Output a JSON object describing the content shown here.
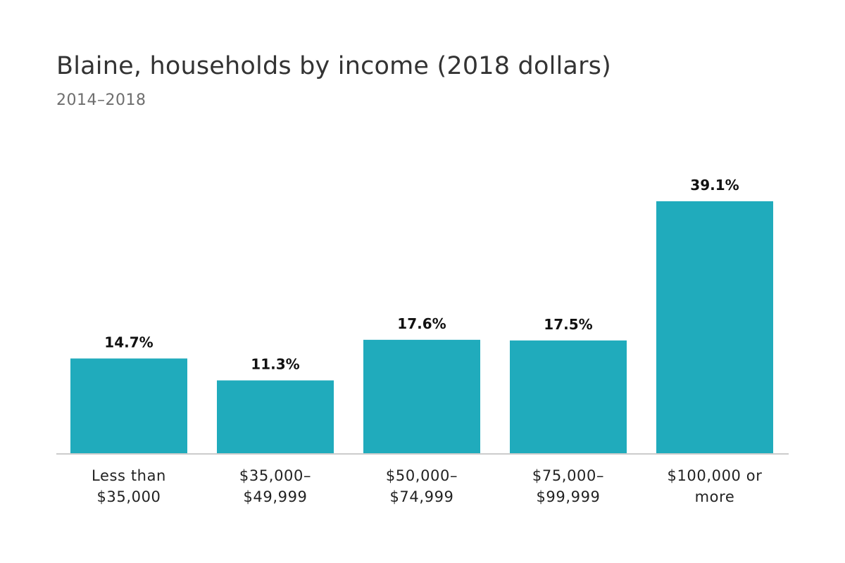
{
  "title": "Blaine, households by income (2018 dollars)",
  "subtitle": "2014–2018",
  "colors": {
    "bar": "#20abbc",
    "axis": "#cccccc",
    "value_label": "#111111"
  },
  "chart_data": {
    "type": "bar",
    "title": "Blaine, households by income (2018 dollars)",
    "subtitle": "2014–2018",
    "categories": [
      [
        "Less than",
        "$35,000"
      ],
      [
        "$35,000–",
        "$49,999"
      ],
      [
        "$50,000–",
        "$74,999"
      ],
      [
        "$75,000–",
        "$99,999"
      ],
      [
        "$100,000 or",
        "more"
      ]
    ],
    "values": [
      14.7,
      11.3,
      17.6,
      17.5,
      39.1
    ],
    "value_labels": [
      "14.7%",
      "11.3%",
      "17.6%",
      "17.5%",
      "39.1%"
    ],
    "unit": "%",
    "ylim": [
      0,
      39.1
    ],
    "grid": false,
    "legend": "none"
  }
}
